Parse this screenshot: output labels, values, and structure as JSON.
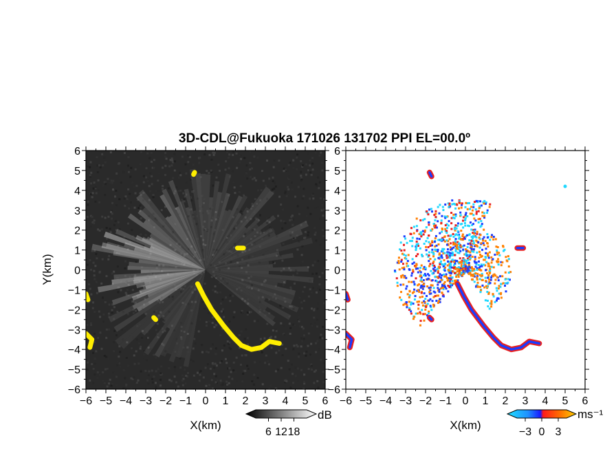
{
  "title": "3D-CDL@Fukuoka 171026 131702 PPI EL=00.0º",
  "colors": {
    "panel_bg_left": "#2a2a2a",
    "echo_yellow": "#ffee00",
    "positive_red": "#e82020",
    "positive_orange": "#ff8000",
    "negative_blue": "#1a3cff",
    "negative_cyan": "#20d8ff"
  },
  "chart_data": [
    {
      "type": "heatmap",
      "panel": "snr",
      "xlabel": "X(km)",
      "ylabel": "Y(km)",
      "xlim": [
        -6,
        6
      ],
      "ylim": [
        -6,
        6
      ],
      "x_ticks": [
        "−6",
        "−5",
        "−4",
        "−3",
        "−2",
        "−1",
        "0",
        "1",
        "2",
        "3",
        "4",
        "5",
        "6"
      ],
      "y_ticks": [
        "6",
        "5",
        "4",
        "3",
        "2",
        "1",
        "0",
        "−1",
        "−2",
        "−3",
        "−4",
        "−5",
        "−6"
      ],
      "colorbar": {
        "unit": "dB",
        "ticks": [
          "6",
          "12",
          "18"
        ],
        "range": [
          0,
          24
        ]
      },
      "echo_tracks": [
        {
          "points": [
            [
              -0.4,
              -0.7
            ],
            [
              -0.1,
              -1.3
            ],
            [
              0.3,
              -2.0
            ],
            [
              0.9,
              -2.8
            ],
            [
              1.4,
              -3.4
            ],
            [
              1.8,
              -3.8
            ],
            [
              2.3,
              -4.0
            ],
            [
              2.8,
              -3.9
            ],
            [
              3.2,
              -3.6
            ],
            [
              3.7,
              -3.7
            ]
          ]
        },
        {
          "points": [
            [
              -6,
              -1.2
            ],
            [
              -5.9,
              -1.5
            ]
          ]
        },
        {
          "points": [
            [
              -6,
              -3.2
            ],
            [
              -5.7,
              -3.5
            ],
            [
              -5.8,
              -3.9
            ]
          ]
        },
        {
          "points": [
            [
              -2.6,
              -2.4
            ],
            [
              -2.5,
              -2.5
            ]
          ]
        },
        {
          "points": [
            [
              -0.6,
              4.8
            ],
            [
              -0.55,
              4.9
            ]
          ]
        },
        {
          "points": [
            [
              1.6,
              1.1
            ],
            [
              1.9,
              1.1
            ]
          ]
        }
      ]
    },
    {
      "type": "heatmap",
      "panel": "velocity",
      "xlabel": "X(km)",
      "xlim": [
        -6,
        6
      ],
      "ylim": [
        -6,
        6
      ],
      "x_ticks": [
        "−6",
        "−5",
        "−4",
        "−3",
        "−2",
        "−1",
        "0",
        "1",
        "2",
        "3",
        "4",
        "5",
        "6"
      ],
      "y_ticks": [
        "6",
        "5",
        "4",
        "3",
        "2",
        "1",
        "0",
        "−1",
        "−2",
        "−3",
        "−4",
        "−5",
        "−6"
      ],
      "colorbar": {
        "unit": "ms⁻¹",
        "ticks": [
          "−3",
          "0",
          "3"
        ],
        "range": [
          -4.5,
          4.5
        ]
      },
      "echo_tracks": [
        {
          "points": [
            [
              -0.4,
              -0.7
            ],
            [
              -0.1,
              -1.3
            ],
            [
              0.3,
              -2.0
            ],
            [
              0.9,
              -2.8
            ],
            [
              1.4,
              -3.4
            ],
            [
              1.8,
              -3.8
            ],
            [
              2.3,
              -4.0
            ],
            [
              2.8,
              -3.9
            ],
            [
              3.2,
              -3.6
            ],
            [
              3.7,
              -3.7
            ]
          ]
        },
        {
          "points": [
            [
              -6,
              -1.2
            ],
            [
              -5.9,
              -1.5
            ]
          ]
        },
        {
          "points": [
            [
              -6,
              -3.2
            ],
            [
              -5.7,
              -3.5
            ],
            [
              -5.8,
              -3.9
            ]
          ]
        },
        {
          "points": [
            [
              -1.8,
              4.9
            ],
            [
              -1.7,
              4.7
            ]
          ]
        },
        {
          "points": [
            [
              2.6,
              1.1
            ],
            [
              2.9,
              1.1
            ]
          ]
        },
        {
          "points": [
            [
              5.0,
              4.2
            ]
          ]
        },
        {
          "points": [
            [
              -1.8,
              -2.4
            ],
            [
              -1.7,
              -2.5
            ]
          ]
        }
      ]
    }
  ]
}
